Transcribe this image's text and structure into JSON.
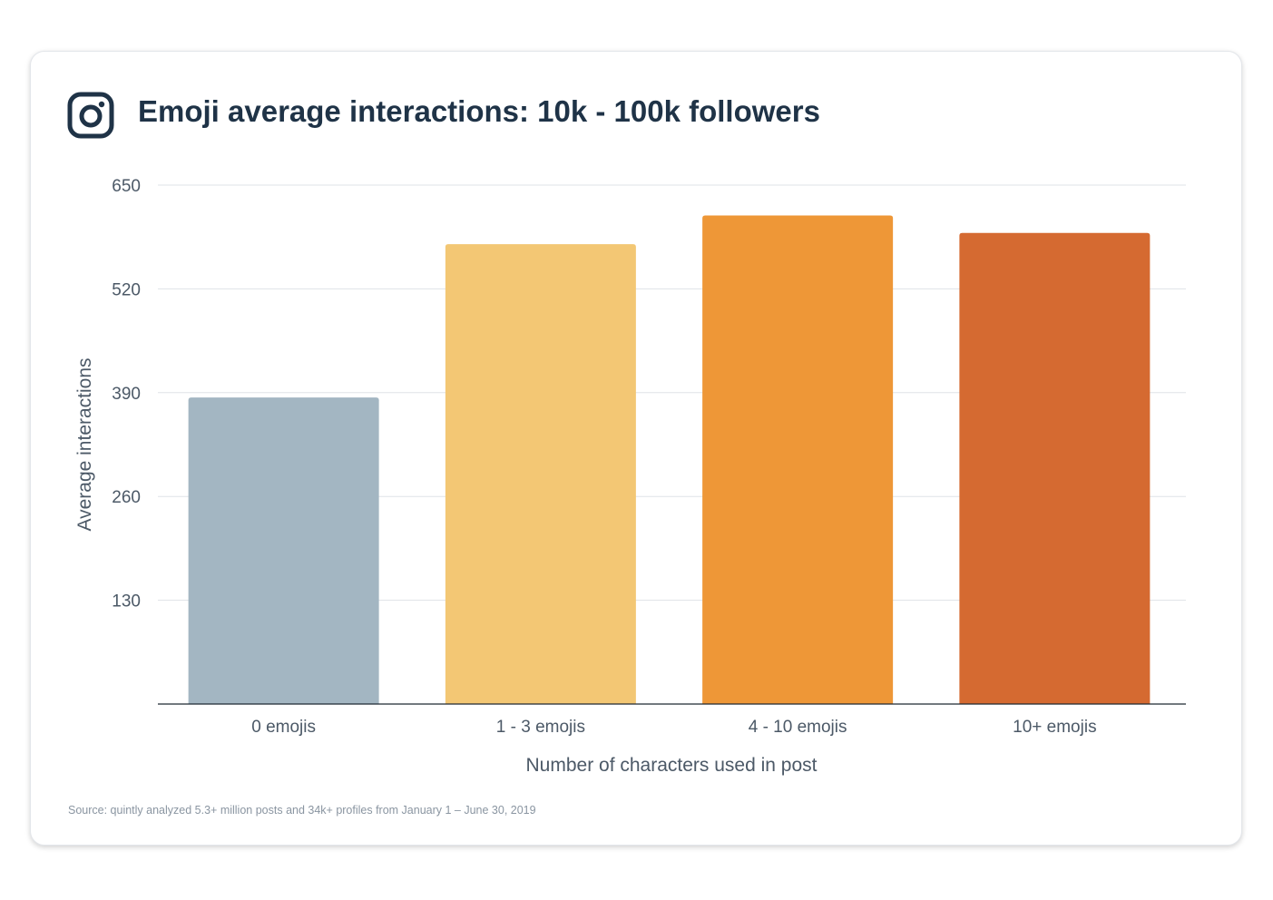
{
  "header": {
    "title": "Emoji average interactions: 10k - 100k followers",
    "logo_icon": "instagram-icon"
  },
  "footer": {
    "source": "Source: quintly analyzed 5.3+ million posts and 34k+ profiles from January 1 – June 30, 2019"
  },
  "chart_data": {
    "type": "bar",
    "title": "Emoji average interactions: 10k - 100k followers",
    "xlabel": "Number of characters used in post",
    "ylabel": "Average interactions",
    "categories": [
      "0 emojis",
      "1 - 3 emojis",
      "4 - 10 emojis",
      "10+ emojis"
    ],
    "values": [
      384,
      576,
      612,
      590
    ],
    "colors": [
      "#a3b6c2",
      "#f3c774",
      "#ee9737",
      "#d56a31"
    ],
    "ylim": [
      0,
      650
    ],
    "yticks": [
      130,
      260,
      390,
      520,
      650
    ],
    "grid": true,
    "legend": "none"
  }
}
